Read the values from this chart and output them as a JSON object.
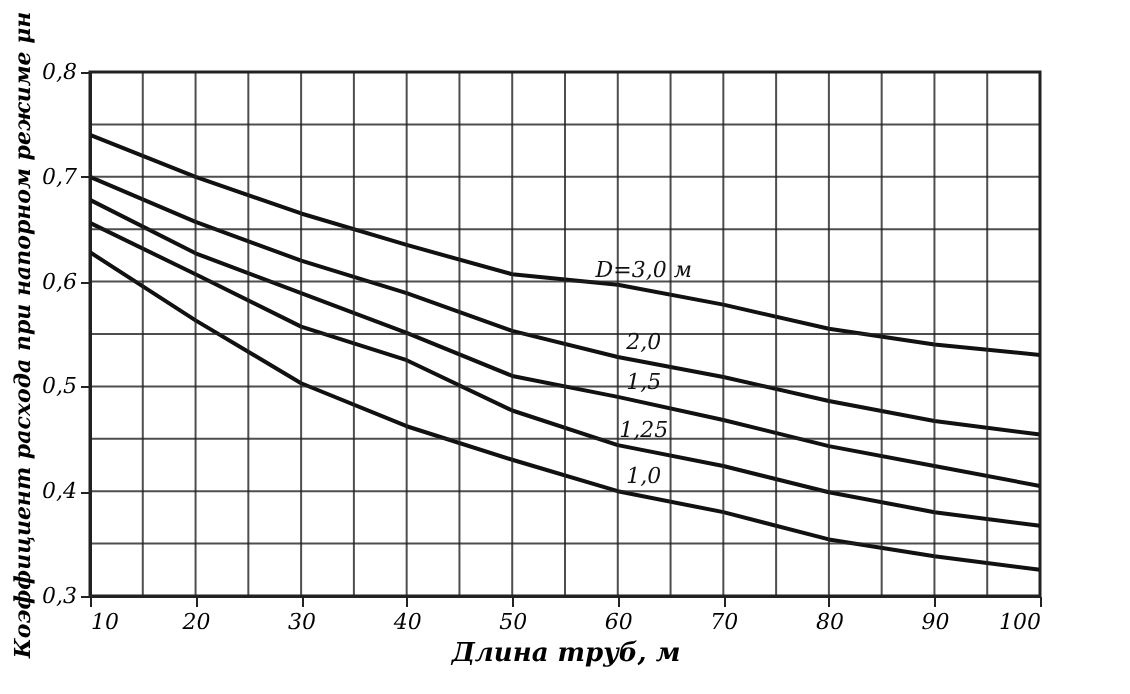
{
  "chart_data": {
    "type": "line",
    "xlabel": "Длина труб,   м",
    "ylabel": "Коэффициент расхода при напорном режиме μн",
    "x": [
      10,
      20,
      30,
      40,
      50,
      60,
      70,
      80,
      90,
      100
    ],
    "series": [
      {
        "name": "D=3,0 м",
        "color": "#111111",
        "values": [
          0.74,
          0.7,
          0.665,
          0.635,
          0.607,
          0.597,
          0.578,
          0.555,
          0.54,
          0.53
        ]
      },
      {
        "name": "2,0",
        "color": "#111111",
        "values": [
          0.7,
          0.657,
          0.62,
          0.589,
          0.553,
          0.528,
          0.509,
          0.486,
          0.467,
          0.454
        ]
      },
      {
        "name": "1,5",
        "color": "#111111",
        "values": [
          0.678,
          0.627,
          0.589,
          0.551,
          0.51,
          0.49,
          0.468,
          0.443,
          0.424,
          0.405
        ]
      },
      {
        "name": "1,25",
        "color": "#111111",
        "values": [
          0.656,
          0.607,
          0.557,
          0.525,
          0.477,
          0.444,
          0.424,
          0.399,
          0.38,
          0.367
        ]
      },
      {
        "name": "1,0",
        "color": "#111111",
        "values": [
          0.628,
          0.563,
          0.503,
          0.462,
          0.43,
          0.4,
          0.38,
          0.354,
          0.338,
          0.325
        ]
      }
    ],
    "xlim": [
      10,
      100
    ],
    "ylim": [
      0.3,
      0.8
    ],
    "xticks": [
      10,
      {
        "value": 15,
        "label": null
      },
      20,
      {
        "value": 25,
        "label": null
      },
      30,
      {
        "value": 35,
        "label": null
      },
      40,
      {
        "value": 45,
        "label": null
      },
      50,
      {
        "value": 55,
        "label": null
      },
      60,
      {
        "value": 65,
        "label": null
      },
      70,
      {
        "value": 75,
        "label": null
      },
      80,
      {
        "value": 85,
        "label": null
      },
      90,
      {
        "value": 95,
        "label": null
      },
      100
    ],
    "yticks": [
      {
        "value": 0.3,
        "label": "0,3"
      },
      {
        "value": 0.35,
        "label": null
      },
      {
        "value": 0.4,
        "label": "0,4"
      },
      {
        "value": 0.45,
        "label": null
      },
      {
        "value": 0.5,
        "label": "0,5"
      },
      {
        "value": 0.55,
        "label": null
      },
      {
        "value": 0.6,
        "label": "0,6"
      },
      {
        "value": 0.65,
        "label": null
      },
      {
        "value": 0.7,
        "label": "0,7"
      },
      {
        "value": 0.75,
        "label": null
      },
      {
        "value": 0.8,
        "label": "0,8"
      }
    ],
    "grid": true,
    "marker": "none",
    "line_style": "solid"
  }
}
